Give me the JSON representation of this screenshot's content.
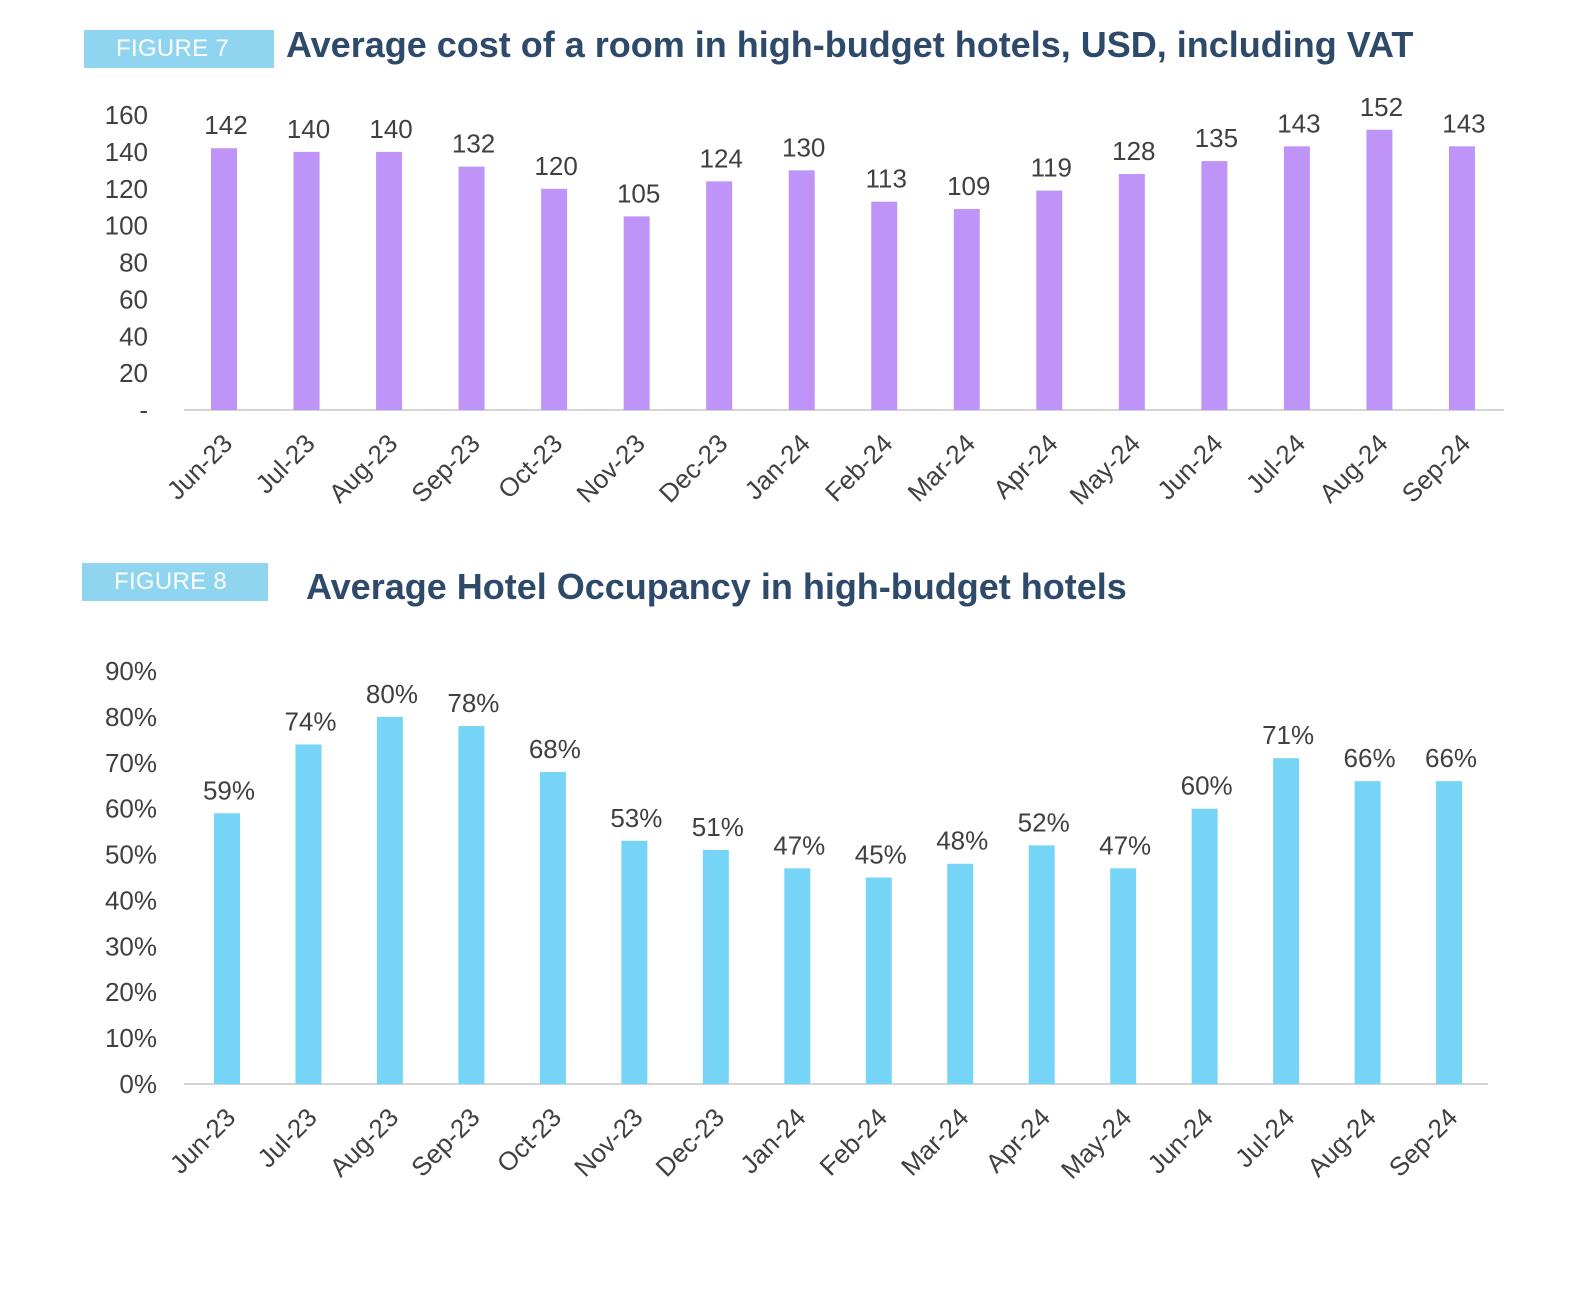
{
  "figures": [
    {
      "badge": "FIGURE 7",
      "title": "Average cost of a room in high-budget hotels, USD, including VAT",
      "chart_data": {
        "type": "bar",
        "categories": [
          "Jun-23",
          "Jul-23",
          "Aug-23",
          "Sep-23",
          "Oct-23",
          "Nov-23",
          "Dec-23",
          "Jan-24",
          "Feb-24",
          "Mar-24",
          "Apr-24",
          "May-24",
          "Jun-24",
          "Jul-24",
          "Aug-24",
          "Sep-24"
        ],
        "values": [
          142,
          140,
          140,
          132,
          120,
          105,
          124,
          130,
          113,
          109,
          119,
          128,
          135,
          143,
          152,
          143
        ],
        "labels": [
          "142",
          "140",
          "140",
          "132",
          "120",
          "105",
          "124",
          "130",
          "113",
          "109",
          "119",
          "128",
          "135",
          "143",
          "152",
          "143"
        ],
        "yticks": [
          "-",
          "20",
          "40",
          "60",
          "80",
          "100",
          "120",
          "140",
          "160"
        ],
        "ylim": [
          0,
          160
        ],
        "color": "#bf94f8",
        "grid": false,
        "legend": "none"
      }
    },
    {
      "badge": "FIGURE 8",
      "title": "Average Hotel Occupancy in high-budget hotels",
      "chart_data": {
        "type": "bar",
        "categories": [
          "Jun-23",
          "Jul-23",
          "Aug-23",
          "Sep-23",
          "Oct-23",
          "Nov-23",
          "Dec-23",
          "Jan-24",
          "Feb-24",
          "Mar-24",
          "Apr-24",
          "May-24",
          "Jun-24",
          "Jul-24",
          "Aug-24",
          "Sep-24"
        ],
        "values": [
          59,
          74,
          80,
          78,
          68,
          53,
          51,
          47,
          45,
          48,
          52,
          47,
          60,
          71,
          66,
          66
        ],
        "labels": [
          "59%",
          "74%",
          "80%",
          "78%",
          "68%",
          "53%",
          "51%",
          "47%",
          "45%",
          "48%",
          "52%",
          "47%",
          "60%",
          "71%",
          "66%",
          "66%"
        ],
        "yticks": [
          "0%",
          "10%",
          "20%",
          "30%",
          "40%",
          "50%",
          "60%",
          "70%",
          "80%",
          "90%"
        ],
        "ylim": [
          0,
          90
        ],
        "color": "#76d5f7",
        "grid": false,
        "legend": "none"
      }
    }
  ]
}
